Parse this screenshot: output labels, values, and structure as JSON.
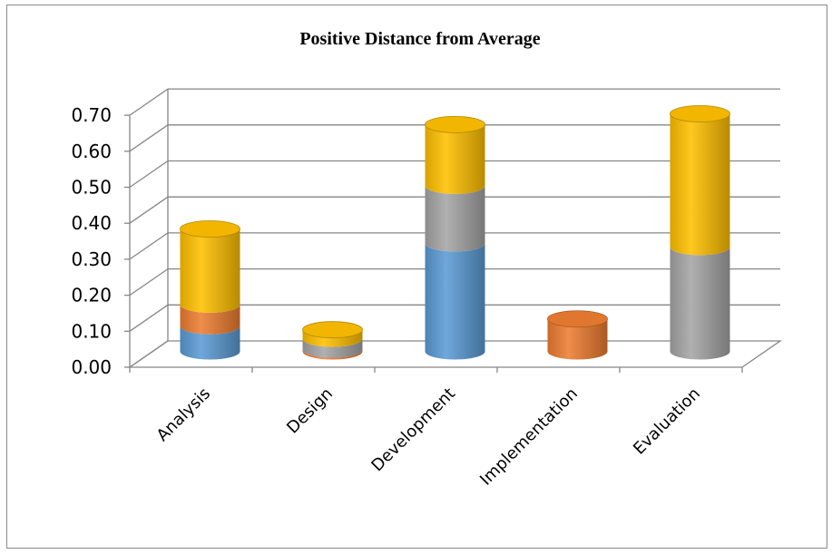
{
  "chart_data": {
    "type": "bar",
    "stacked": true,
    "style": "3d-cylinder",
    "title": "Positive Distance from Average",
    "categories": [
      "Analysis",
      "Design",
      "Development",
      "Implementation",
      "Evaluation"
    ],
    "series": [
      {
        "color": "#5b9bd5",
        "values": [
          0.07,
          0.0,
          0.3,
          0.0,
          0.0
        ]
      },
      {
        "color": "#ed7d31",
        "values": [
          0.06,
          0.005,
          0.0,
          0.09,
          0.0
        ]
      },
      {
        "color": "#a5a5a5",
        "values": [
          0.0,
          0.03,
          0.16,
          0.0,
          0.29
        ]
      },
      {
        "color": "#ffc000",
        "values": [
          0.21,
          0.025,
          0.17,
          0.0,
          0.37
        ]
      }
    ],
    "ylim": [
      0,
      0.7
    ],
    "yticks": [
      "0.00",
      "0.10",
      "0.20",
      "0.30",
      "0.40",
      "0.50",
      "0.60",
      "0.70"
    ],
    "grid": true,
    "legend": "none"
  }
}
